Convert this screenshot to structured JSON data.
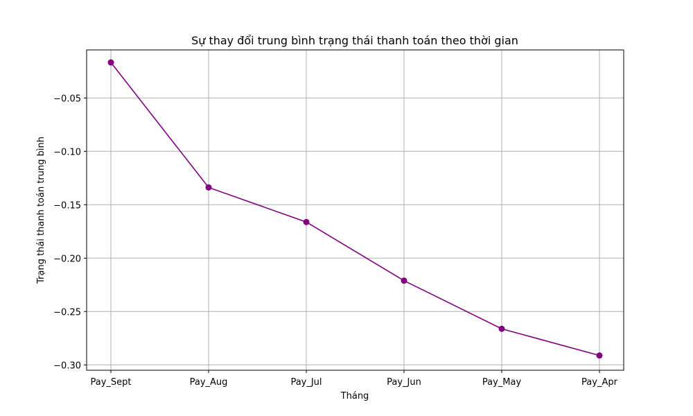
{
  "chart_data": {
    "type": "line",
    "title": "Sự thay đổi trung bình trạng thái thanh toán theo thời gian",
    "xlabel": "Tháng",
    "ylabel": "Trạng thái thanh toán trung bình",
    "categories": [
      "Pay_Sept",
      "Pay_Aug",
      "Pay_Jul",
      "Pay_Jun",
      "Pay_May",
      "Pay_Apr"
    ],
    "series": [
      {
        "values": [
          -0.0167,
          -0.1338,
          -0.1662,
          -0.2211,
          -0.2662,
          -0.2912
        ],
        "color": "#800080",
        "marker": "circle"
      }
    ],
    "ylim": [
      -0.305,
      -0.005
    ],
    "yticks": [
      -0.05,
      -0.1,
      -0.15,
      -0.2,
      -0.25,
      -0.3
    ],
    "ytick_labels": [
      "−0.05",
      "−0.10",
      "−0.15",
      "−0.20",
      "−0.25",
      "−0.30"
    ],
    "grid": true
  }
}
